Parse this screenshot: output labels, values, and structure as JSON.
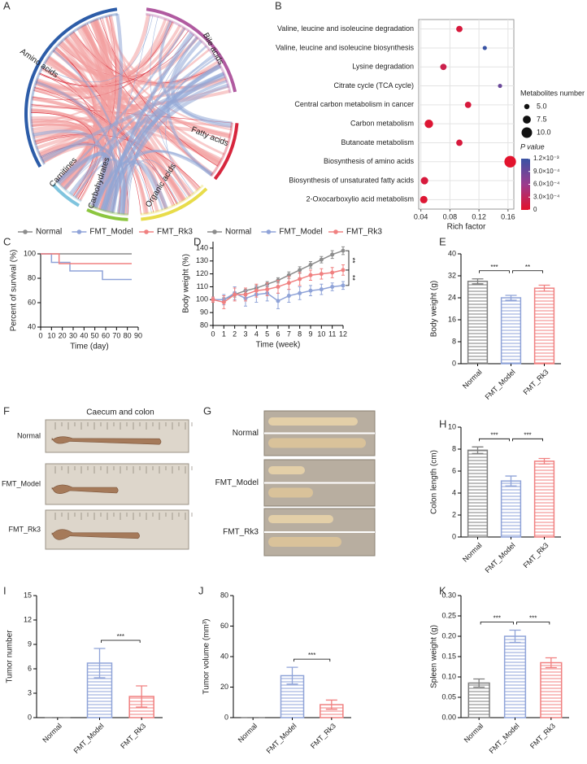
{
  "panels": [
    "A",
    "B",
    "C",
    "D",
    "E",
    "F",
    "G",
    "H",
    "I",
    "J",
    "K"
  ],
  "photos": {
    "F": {
      "title": "Caecum and colon",
      "labels": [
        "Normal",
        "FMT_Model",
        "FMT_Rk3"
      ]
    },
    "G": {
      "labels": [
        "Normal",
        "FMT_Model",
        "FMT_Rk3"
      ]
    }
  },
  "chart_data": [
    {
      "type": "chord",
      "categories": [
        "Amino acids",
        "Bile acids",
        "Fatty acids",
        "Organic acids",
        "Carbohydrates",
        "Carnitines"
      ],
      "colors": [
        "#2c5ca8",
        "#b05aa0",
        "#d7263d",
        "#e8dc4a",
        "#8cc63f",
        "#7fc4de"
      ]
    },
    {
      "type": "bubble",
      "xlabel": "Rich factor",
      "categories": [
        "Valine, leucine and isoleucine degradation",
        "Valine, leucine and isoleucine biosynthesis",
        "Lysine degradation",
        "Citrate cycle (TCA cycle)",
        "Central carbon metabolism in cancer",
        "Carbon metabolism",
        "Butanoate metabolism",
        "Biosynthesis of amino acids",
        "Biosynthesis of unsaturated fatty acids",
        "2-Oxocarboxylio acid metabolism"
      ],
      "values": [
        0.093,
        0.128,
        0.071,
        0.149,
        0.105,
        0.051,
        0.093,
        0.163,
        0.045,
        0.044
      ],
      "sizes": [
        6,
        4,
        6,
        4,
        6,
        8,
        6,
        11,
        7,
        7
      ],
      "p_values": [
        0.0001,
        0.0012,
        0.0002,
        0.0009,
        0.0001,
        5e-05,
        0.0001,
        1e-05,
        0.0001,
        5e-05
      ],
      "xlim": [
        0.037,
        0.168
      ],
      "xticks": [
        0.04,
        0.08,
        0.12,
        0.16
      ],
      "grid": true,
      "size_legend": {
        "title": "Metabolites number",
        "ticks": [
          {
            "value": 5,
            "label": "5.0"
          },
          7.5,
          {
            "value": 10,
            "label": "10.0"
          }
        ]
      },
      "color_legend": {
        "title": "P value",
        "clim": [
          0,
          0.0012
        ],
        "colors": [
          "#e3122b",
          "#9b3c8e",
          "#3953a4"
        ],
        "ticks": [
          {
            "value": 0.0012,
            "label": "1.2×10⁻³"
          },
          {
            "value": 0.0009,
            "label": "9.0×10⁻⁴"
          },
          {
            "value": 0.0006,
            "label": "6.0×10⁻⁴"
          },
          {
            "value": 0.0003,
            "label": "3.0×10⁻⁴"
          },
          0
        ]
      }
    },
    {
      "type": "line",
      "step": true,
      "xlabel": "Time (day)",
      "ylabel": "Percent of survival (%)",
      "xlim": [
        0,
        90
      ],
      "xticks": [
        0,
        10,
        20,
        30,
        40,
        50,
        60,
        70,
        80,
        90
      ],
      "ylim": [
        40,
        100
      ],
      "yticks": [
        40,
        60,
        80,
        100
      ],
      "series": [
        {
          "name": "Normal",
          "color": "#8c8c8c",
          "x": [
            0,
            84
          ],
          "values": [
            100,
            100
          ]
        },
        {
          "name": "FMT_Model",
          "color": "#8fa3d8",
          "x": [
            0,
            10,
            27,
            57,
            84
          ],
          "values": [
            100,
            93,
            86,
            79,
            79
          ]
        },
        {
          "name": "FMT_Rk3",
          "color": "#f08080",
          "x": [
            0,
            17,
            84
          ],
          "values": [
            100,
            92,
            92
          ]
        }
      ]
    },
    {
      "type": "line",
      "xlabel": "Time (week)",
      "ylabel": "Body weight (%)",
      "x": [
        0,
        1,
        2,
        3,
        4,
        5,
        6,
        7,
        8,
        9,
        10,
        11,
        12
      ],
      "xlim": [
        0,
        12
      ],
      "xticks": [
        0,
        1,
        2,
        3,
        4,
        5,
        6,
        7,
        8,
        9,
        10,
        11,
        12
      ],
      "ylim": [
        80,
        145
      ],
      "yticks": [
        80,
        90,
        100,
        110,
        120,
        130,
        140
      ],
      "series": [
        {
          "name": "Normal",
          "color": "#8c8c8c",
          "values": [
            100,
            100,
            104,
            107,
            109,
            112,
            115,
            119,
            123,
            127,
            131,
            135,
            138
          ],
          "errors": [
            1,
            1.5,
            2,
            2,
            2,
            2,
            2,
            2.5,
            2.5,
            2.5,
            2.5,
            3,
            3
          ]
        },
        {
          "name": "FMT_Model",
          "color": "#8fa3d8",
          "values": [
            100,
            100,
            105,
            101,
            104,
            105,
            99,
            103,
            105,
            107,
            108,
            110,
            111
          ],
          "errors": [
            2,
            4,
            5,
            6,
            6,
            6,
            6,
            5,
            5,
            4,
            4,
            3,
            3
          ]
        },
        {
          "name": "FMT_Rk3",
          "color": "#f08080",
          "values": [
            100,
            98,
            104,
            104,
            107,
            108,
            110,
            113,
            116,
            119,
            120,
            121,
            123
          ],
          "errors": [
            2,
            5,
            5,
            5,
            5,
            5,
            5,
            5,
            5,
            4,
            4,
            4,
            4
          ]
        }
      ],
      "annotations": [
        {
          "label": "**",
          "between": [
            "Normal",
            "FMT_Rk3"
          ]
        },
        {
          "label": "**",
          "between": [
            "FMT_Rk3",
            "FMT_Model"
          ]
        }
      ]
    },
    {
      "type": "bar",
      "ylabel": "Body weight (g)",
      "categories": [
        "Normal",
        "FMT_Model",
        "FMT_Rk3"
      ],
      "values": [
        30,
        24,
        27.5
      ],
      "errors": [
        0.9,
        0.9,
        1.1
      ],
      "colors": [
        "#7f7f7f",
        "#8fa3d8",
        "#f08080"
      ],
      "ylim": [
        0,
        40
      ],
      "yticks": [
        0,
        8,
        16,
        24,
        32,
        40
      ],
      "significance": [
        {
          "label": "***",
          "between": [
            "Normal",
            "FMT_Model"
          ]
        },
        {
          "label": "**",
          "between": [
            "FMT_Model",
            "FMT_Rk3"
          ]
        }
      ]
    },
    {
      "type": "bar",
      "ylabel": "Colon length (cm)",
      "categories": [
        "Normal",
        "FMT_Model",
        "FMT_Rk3"
      ],
      "values": [
        7.9,
        5.1,
        6.9
      ],
      "errors": [
        0.3,
        0.45,
        0.25
      ],
      "colors": [
        "#7f7f7f",
        "#8fa3d8",
        "#f08080"
      ],
      "ylim": [
        0,
        10
      ],
      "yticks": [
        0,
        2,
        4,
        6,
        8,
        10
      ],
      "significance": [
        {
          "label": "***",
          "between": [
            "Normal",
            "FMT_Model"
          ]
        },
        {
          "label": "***",
          "between": [
            "FMT_Model",
            "FMT_Rk3"
          ]
        }
      ]
    },
    {
      "type": "bar",
      "ylabel": "Tumor number",
      "categories": [
        "Normal",
        "FMT_Model",
        "FMT_Rk3"
      ],
      "values": [
        0,
        6.7,
        2.6
      ],
      "errors": [
        0,
        1.8,
        1.3
      ],
      "colors": [
        "#7f7f7f",
        "#8fa3d8",
        "#f08080"
      ],
      "ylim": [
        0,
        15
      ],
      "yticks": [
        0,
        3,
        6,
        9,
        12,
        15
      ],
      "significance": [
        {
          "label": "***",
          "between": [
            "FMT_Model",
            "FMT_Rk3"
          ]
        }
      ]
    },
    {
      "type": "bar",
      "ylabel": "Tumor volume (mm³)",
      "categories": [
        "Normal",
        "FMT_Model",
        "FMT_Rk3"
      ],
      "values": [
        0,
        27.5,
        8.5
      ],
      "errors": [
        0,
        5.5,
        3
      ],
      "colors": [
        "#7f7f7f",
        "#8fa3d8",
        "#f08080"
      ],
      "ylim": [
        0,
        80
      ],
      "yticks": [
        0,
        20,
        40,
        60,
        80
      ],
      "significance": [
        {
          "label": "***",
          "between": [
            "FMT_Model",
            "FMT_Rk3"
          ]
        }
      ]
    },
    {
      "type": "bar",
      "ylabel": "Spleen weight (g)",
      "categories": [
        "Normal",
        "FMT_Model",
        "FMT_Rk3"
      ],
      "values": [
        0.085,
        0.2,
        0.135
      ],
      "errors": [
        0.01,
        0.015,
        0.012
      ],
      "colors": [
        "#7f7f7f",
        "#8fa3d8",
        "#f08080"
      ],
      "ylim": [
        0,
        0.3
      ],
      "yticks": [
        {
          "value": 0,
          "label": "0.00"
        },
        {
          "value": 0.05,
          "label": "0.05"
        },
        {
          "value": 0.1,
          "label": "0.10"
        },
        {
          "value": 0.15,
          "label": "0.15"
        },
        {
          "value": 0.2,
          "label": "0.20"
        },
        {
          "value": 0.25,
          "label": "0.25"
        },
        {
          "value": 0.3,
          "label": "0.30"
        }
      ],
      "significance": [
        {
          "label": "***",
          "between": [
            "Normal",
            "FMT_Model"
          ]
        },
        {
          "label": "***",
          "between": [
            "FMT_Model",
            "FMT_Rk3"
          ]
        }
      ]
    }
  ]
}
